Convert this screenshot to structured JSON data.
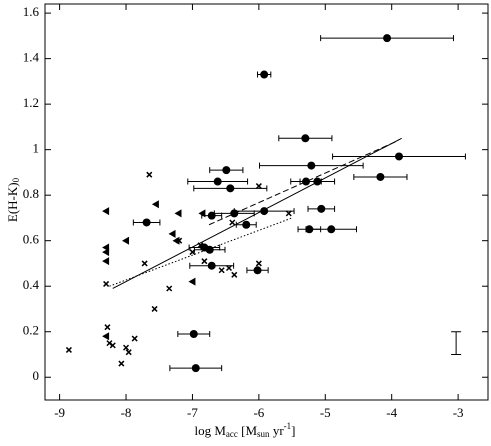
{
  "chart_data": {
    "type": "scatter",
    "xlabel": {
      "text": "log M",
      "sub": "acc",
      "unit_open": " [M",
      "unit_sub": "sun",
      "unit_text": " yr",
      "unit_sup": "-1",
      "unit_close": "]"
    },
    "ylabel": {
      "text": "E(H-K)",
      "sub": "0"
    },
    "xlim": [
      -9.22,
      -2.55
    ],
    "ylim": [
      -0.1,
      1.64
    ],
    "xticks": [
      -9,
      -8,
      -7,
      -6,
      -5,
      -4,
      -3
    ],
    "yticks": [
      0,
      0.2,
      0.4,
      0.6,
      0.8,
      1,
      1.2,
      1.4,
      1.6
    ],
    "color": "#000000",
    "series": [
      {
        "marker": "circle",
        "x": [
          -4.07,
          -5.92,
          -5.3,
          -5.21,
          -3.89,
          -4.17,
          -5.29,
          -5.12,
          -6.49,
          -6.62,
          -6.43,
          -5.92,
          -5.06,
          -6.37,
          -6.71,
          -6.19,
          -5.24,
          -4.91,
          -7.69,
          -6.82,
          -6.74,
          -6.71,
          -6.02,
          -6.98,
          -6.95
        ],
        "values": [
          1.49,
          1.33,
          1.05,
          0.93,
          0.97,
          0.88,
          0.86,
          0.86,
          0.91,
          0.86,
          0.83,
          0.73,
          0.74,
          0.72,
          0.71,
          0.67,
          0.65,
          0.65,
          0.68,
          0.57,
          0.56,
          0.49,
          0.47,
          0.19,
          0.04
        ],
        "xerr": [
          1.0,
          0.1,
          0.4,
          0.78,
          1.0,
          0.4,
          0.23,
          0.26,
          0.25,
          0.45,
          0.55,
          0.45,
          0.2,
          0.3,
          0.15,
          0.15,
          0.17,
          0.38,
          0.2,
          0.23,
          0.23,
          0.33,
          0.16,
          0.24,
          0.39
        ]
      },
      {
        "marker": "triangle",
        "x": [
          -8.3,
          -8.3,
          -8.3,
          -8.3,
          -8.3,
          -8.0,
          -7.55,
          -7.21,
          -7.3,
          -7.24,
          -7.0,
          -6.85,
          -6.85
        ],
        "values": [
          0.73,
          0.57,
          0.55,
          0.51,
          0.18,
          0.6,
          0.76,
          0.72,
          0.63,
          0.6,
          0.42,
          0.72,
          0.57
        ]
      },
      {
        "marker": "cross",
        "x": [
          -8.86,
          -8.28,
          -8.25,
          -8.2,
          -8.0,
          -7.96,
          -7.87,
          -8.07,
          -8.3,
          -7.65,
          -7.72,
          -7.57,
          -7.35,
          -7.2,
          -7.0,
          -6.88,
          -6.82,
          -6.56,
          -6.45,
          -6.37,
          -6.4,
          -6.0,
          -6.0,
          -5.55
        ],
        "values": [
          0.12,
          0.22,
          0.15,
          0.14,
          0.13,
          0.11,
          0.17,
          0.06,
          0.41,
          0.89,
          0.5,
          0.3,
          0.39,
          0.6,
          0.55,
          0.58,
          0.51,
          0.47,
          0.48,
          0.45,
          0.68,
          0.84,
          0.5,
          0.72
        ]
      }
    ],
    "fits": [
      {
        "style": "solid",
        "x": [
          -8.2,
          -3.85
        ],
        "values": [
          0.39,
          1.05
        ]
      },
      {
        "style": "dashed",
        "x": [
          -6.75,
          -3.9
        ],
        "values": [
          0.67,
          1.04
        ]
      },
      {
        "style": "dotted",
        "x": [
          -8.25,
          -5.5
        ],
        "values": [
          0.4,
          0.7
        ]
      }
    ],
    "typical_error": {
      "x": -3.03,
      "value": 0.15,
      "yerr": 0.05
    }
  }
}
